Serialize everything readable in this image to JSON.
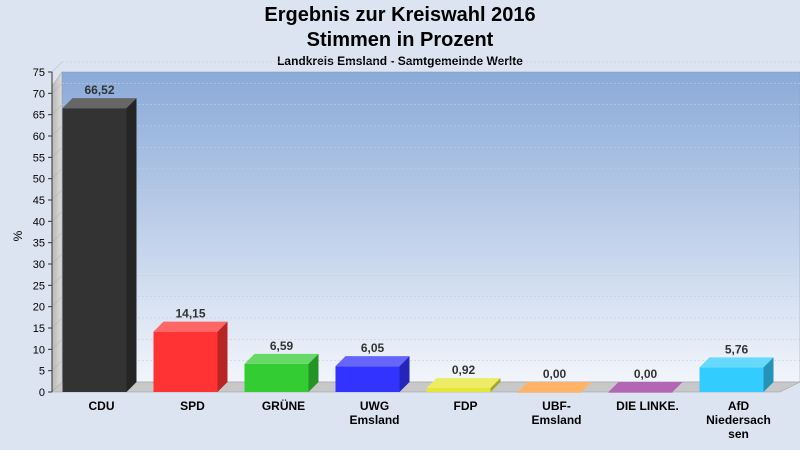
{
  "chart_data": {
    "type": "bar",
    "title": "Ergebnis zur Kreiswahl 2016",
    "title_line2": "Stimmen in Prozent",
    "subtitle": "Landkreis Emsland - Samtgemeinde Werlte",
    "ylabel": "%",
    "xlabel": "",
    "ylim": [
      0,
      75
    ],
    "ytick_step": 5,
    "grid": true,
    "categories": [
      [
        "CDU"
      ],
      [
        "SPD"
      ],
      [
        "GRÜNE"
      ],
      [
        "UWG",
        "Emsland"
      ],
      [
        "FDP"
      ],
      [
        "UBF-",
        "Emsland"
      ],
      [
        "DIE LINKE."
      ],
      [
        "AfD",
        "Niedersach",
        "sen"
      ]
    ],
    "values": [
      66.52,
      14.15,
      6.59,
      6.05,
      0.92,
      0.0,
      0.0,
      5.76
    ],
    "data_labels": [
      "66,52",
      "14,15",
      "6,59",
      "6,05",
      "0,92",
      "0,00",
      "0,00",
      "5,76"
    ],
    "colors": [
      "#333333",
      "#ff3333",
      "#33cc33",
      "#3333ff",
      "#e6e633",
      "#ff9933",
      "#993399",
      "#33ccff"
    ]
  }
}
